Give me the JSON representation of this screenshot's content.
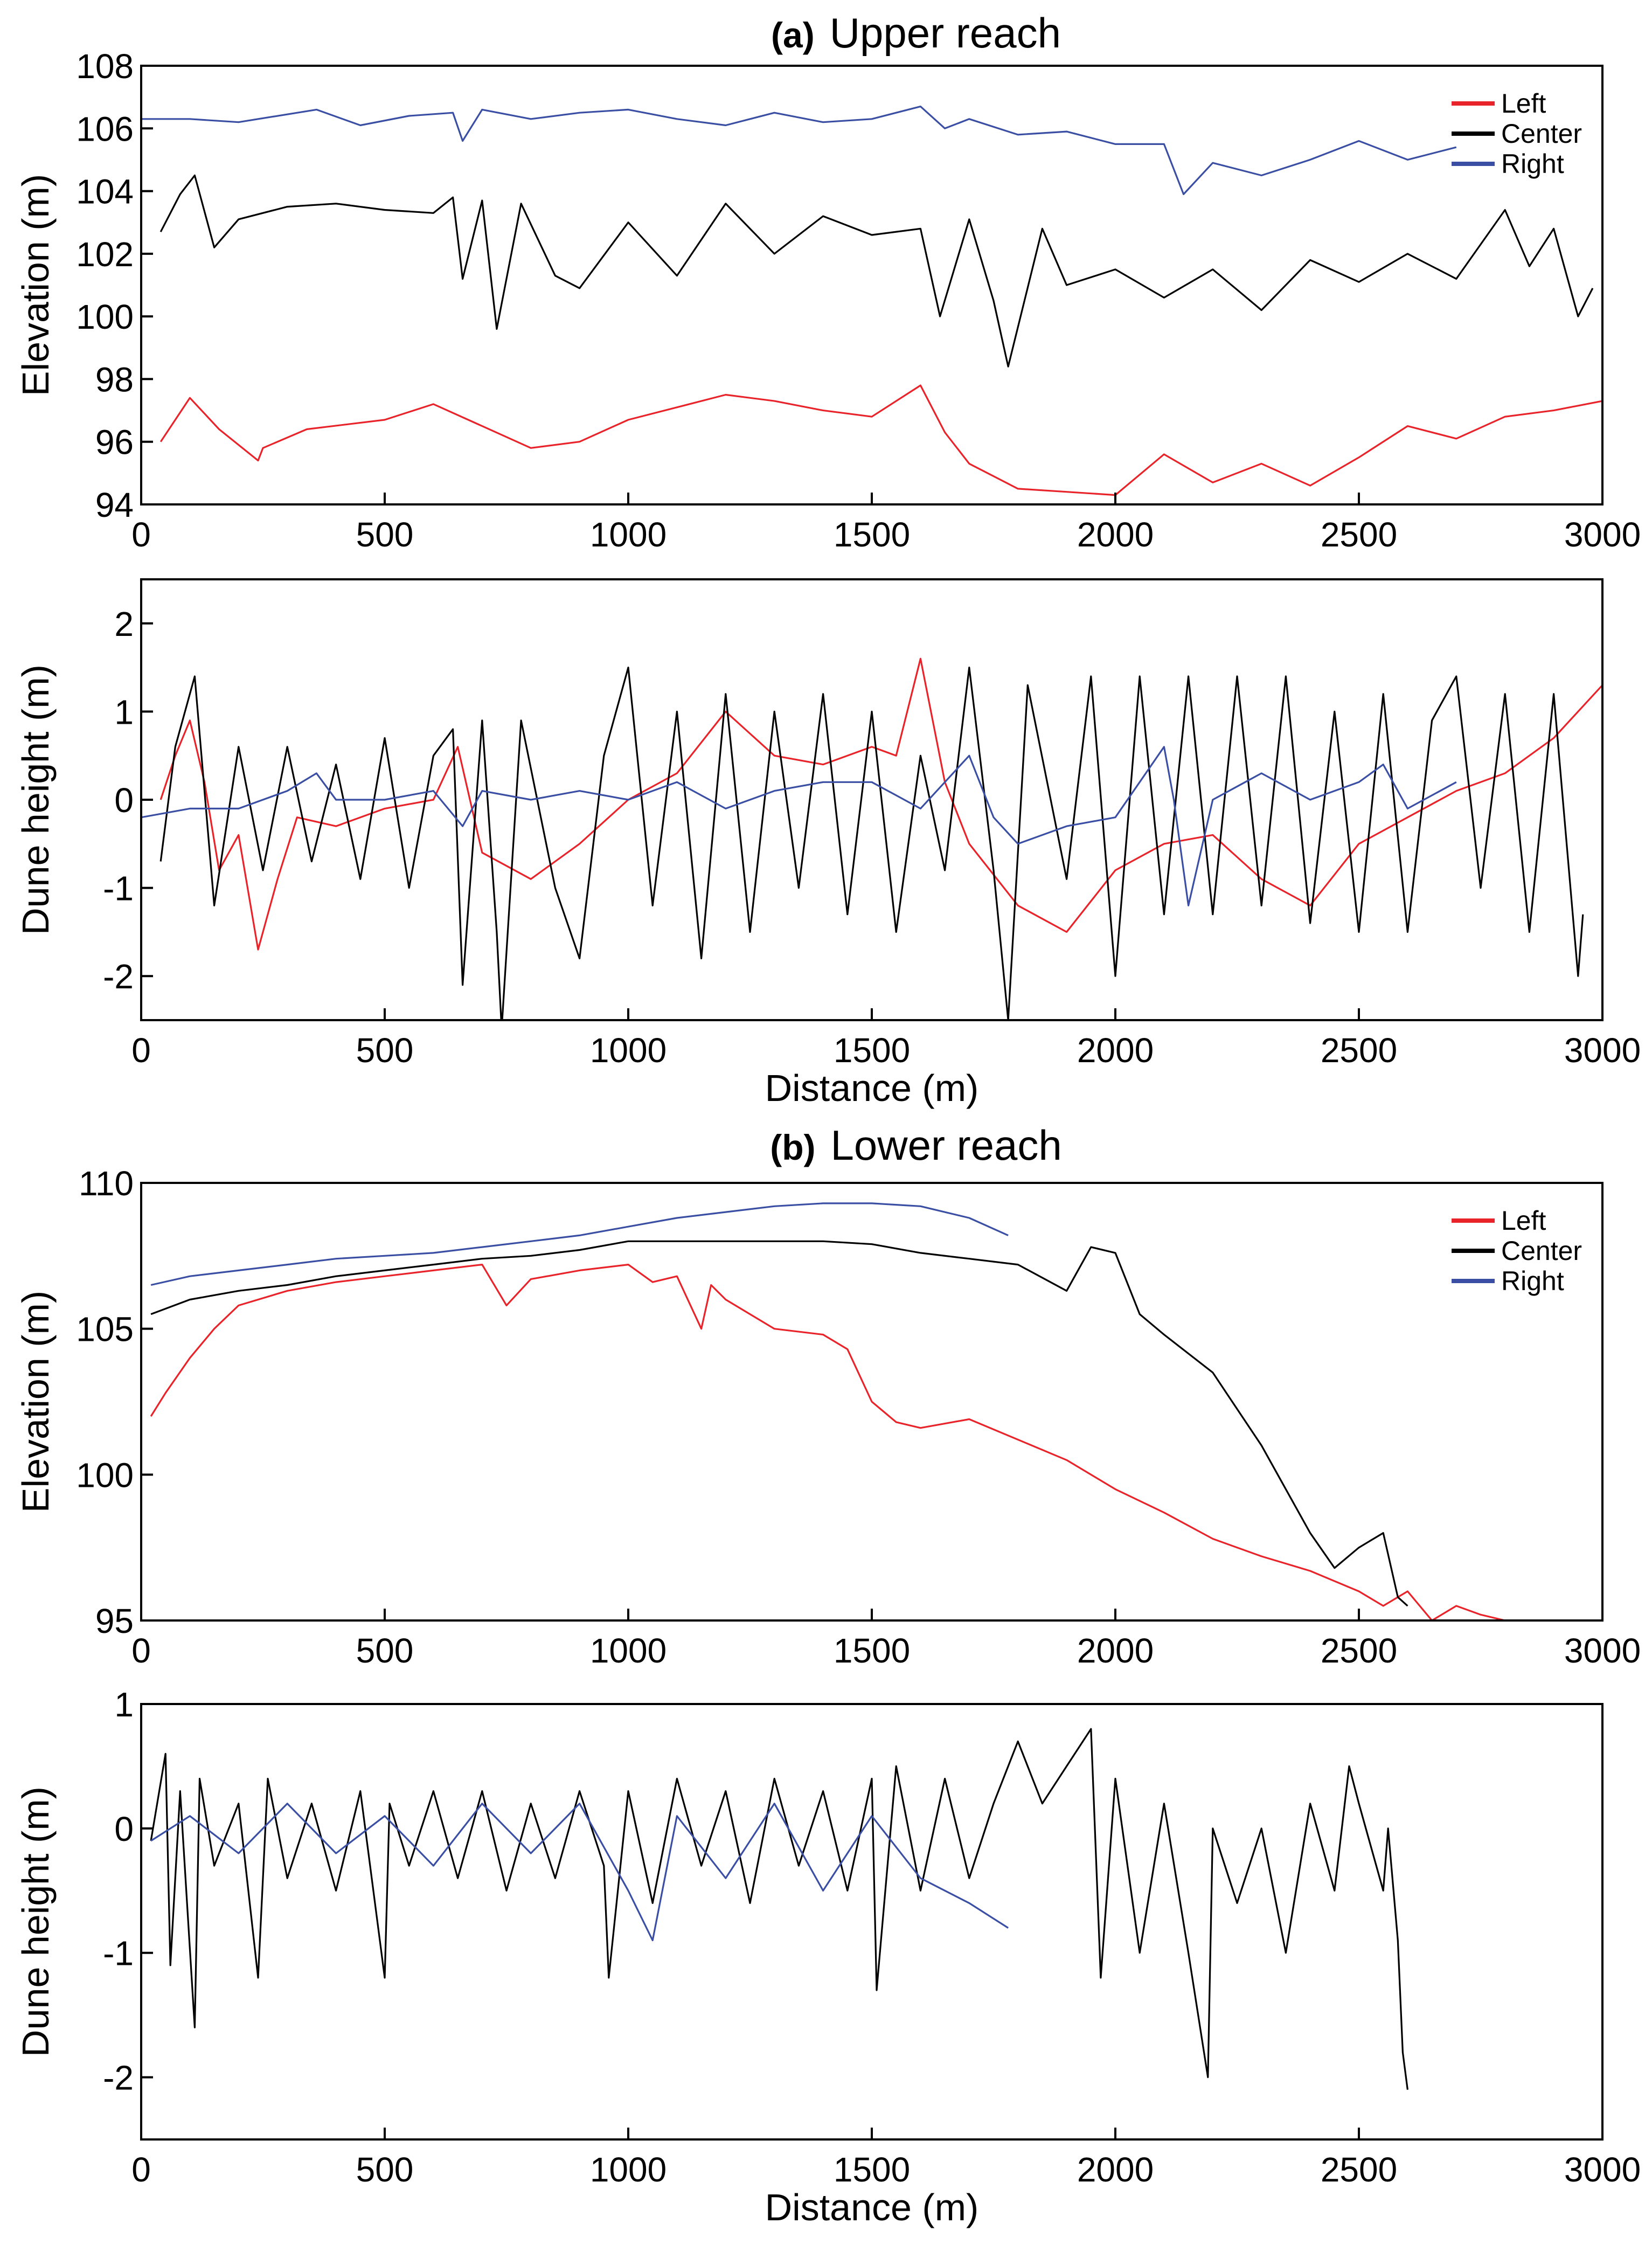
{
  "chart_data": [
    {
      "type": "line",
      "panel_prefix": "(a)",
      "title": "Upper reach",
      "xlabel": "",
      "ylabel": "Elevation (m)",
      "xlim": [
        0,
        3000
      ],
      "ylim": [
        94,
        108
      ],
      "xticks": [
        0,
        500,
        1000,
        1500,
        2000,
        2500,
        3000
      ],
      "yticks": [
        94,
        96,
        98,
        100,
        102,
        104,
        106,
        108
      ],
      "legend_position": "top-right",
      "series": [
        {
          "name": "Left",
          "color": "#e8232a",
          "x": [
            40,
            100,
            160,
            240,
            250,
            340,
            500,
            600,
            700,
            800,
            900,
            1000,
            1100,
            1200,
            1300,
            1400,
            1500,
            1600,
            1650,
            1700,
            1800,
            1900,
            2000,
            2100,
            2200,
            2300,
            2400,
            2500,
            2600,
            2700,
            2800,
            2900,
            3000
          ],
          "y": [
            96.0,
            97.4,
            96.4,
            95.4,
            95.8,
            96.4,
            96.7,
            97.2,
            96.5,
            95.8,
            96.0,
            96.7,
            97.1,
            97.5,
            97.3,
            97.0,
            96.8,
            97.8,
            96.3,
            95.3,
            94.5,
            94.4,
            94.3,
            95.6,
            94.7,
            95.3,
            94.6,
            95.5,
            96.5,
            96.1,
            96.8,
            97.0,
            97.3
          ]
        },
        {
          "name": "Center",
          "color": "#000000",
          "x": [
            40,
            80,
            110,
            150,
            200,
            300,
            400,
            500,
            600,
            640,
            660,
            700,
            730,
            780,
            850,
            900,
            1000,
            1100,
            1200,
            1300,
            1400,
            1500,
            1600,
            1640,
            1700,
            1750,
            1780,
            1850,
            1900,
            2000,
            2100,
            2200,
            2300,
            2400,
            2500,
            2600,
            2700,
            2800,
            2850,
            2900,
            2950,
            2980
          ],
          "y": [
            102.7,
            103.9,
            104.5,
            102.2,
            103.1,
            103.5,
            103.6,
            103.4,
            103.3,
            103.8,
            101.2,
            103.7,
            99.6,
            103.6,
            101.3,
            100.9,
            103.0,
            101.3,
            103.6,
            102.0,
            103.2,
            102.6,
            102.8,
            100.0,
            103.1,
            100.5,
            98.4,
            102.8,
            101.0,
            101.5,
            100.6,
            101.5,
            100.2,
            101.8,
            101.1,
            102.0,
            101.2,
            103.4,
            101.6,
            102.8,
            100.0,
            100.9
          ]
        },
        {
          "name": "Right",
          "color": "#3a4fa3",
          "x": [
            0,
            100,
            200,
            360,
            450,
            550,
            640,
            660,
            700,
            800,
            900,
            1000,
            1100,
            1200,
            1300,
            1400,
            1500,
            1600,
            1650,
            1700,
            1800,
            1900,
            2000,
            2100,
            2140,
            2200,
            2300,
            2400,
            2500,
            2600,
            2700
          ],
          "y": [
            106.3,
            106.3,
            106.2,
            106.6,
            106.1,
            106.4,
            106.5,
            105.6,
            106.6,
            106.3,
            106.5,
            106.6,
            106.3,
            106.1,
            106.5,
            106.2,
            106.3,
            106.7,
            106.0,
            106.3,
            105.8,
            105.9,
            105.5,
            105.5,
            103.9,
            104.9,
            104.5,
            105.0,
            105.6,
            105.0,
            105.4
          ]
        }
      ]
    },
    {
      "type": "line",
      "panel_prefix": "",
      "title": "",
      "xlabel": "Distance (m)",
      "ylabel": "Dune height (m)",
      "xlim": [
        0,
        3000
      ],
      "ylim": [
        -2.5,
        2.5
      ],
      "xticks": [
        0,
        500,
        1000,
        1500,
        2000,
        2500,
        3000
      ],
      "yticks": [
        -2,
        -1,
        0,
        1,
        2
      ],
      "legend_position": "none",
      "series": [
        {
          "name": "Left",
          "color": "#e8232a",
          "x": [
            40,
            70,
            100,
            130,
            160,
            200,
            240,
            280,
            320,
            400,
            500,
            600,
            650,
            700,
            800,
            900,
            1000,
            1100,
            1200,
            1300,
            1400,
            1500,
            1550,
            1600,
            1650,
            1700,
            1800,
            1900,
            2000,
            2100,
            2200,
            2300,
            2400,
            2500,
            2600,
            2700,
            2800,
            2900,
            3000
          ],
          "y": [
            0.0,
            0.5,
            0.9,
            0.2,
            -0.8,
            -0.4,
            -1.7,
            -0.9,
            -0.2,
            -0.3,
            -0.1,
            0.0,
            0.6,
            -0.6,
            -0.9,
            -0.5,
            0.0,
            0.3,
            1.0,
            0.5,
            0.4,
            0.6,
            0.5,
            1.6,
            0.2,
            -0.5,
            -1.2,
            -1.5,
            -0.8,
            -0.5,
            -0.4,
            -0.9,
            -1.2,
            -0.5,
            -0.2,
            0.1,
            0.3,
            0.7,
            1.3
          ]
        },
        {
          "name": "Center",
          "color": "#000000",
          "x": [
            40,
            70,
            110,
            150,
            200,
            250,
            300,
            350,
            400,
            450,
            500,
            550,
            600,
            640,
            660,
            700,
            730,
            740,
            780,
            850,
            900,
            950,
            1000,
            1050,
            1100,
            1150,
            1200,
            1250,
            1300,
            1350,
            1400,
            1450,
            1500,
            1550,
            1600,
            1650,
            1700,
            1750,
            1780,
            1820,
            1900,
            1950,
            2000,
            2050,
            2100,
            2150,
            2200,
            2250,
            2300,
            2350,
            2400,
            2450,
            2500,
            2550,
            2600,
            2650,
            2700,
            2750,
            2800,
            2850,
            2900,
            2950,
            2960
          ],
          "y": [
            -0.7,
            0.6,
            1.4,
            -1.2,
            0.6,
            -0.8,
            0.6,
            -0.7,
            0.4,
            -0.9,
            0.7,
            -1.0,
            0.5,
            0.8,
            -2.1,
            0.9,
            -1.5,
            -2.6,
            0.9,
            -1.0,
            -1.8,
            0.5,
            1.5,
            -1.2,
            1.0,
            -1.8,
            1.2,
            -1.5,
            1.0,
            -1.0,
            1.2,
            -1.3,
            1.0,
            -1.5,
            0.5,
            -0.8,
            1.5,
            -0.8,
            -2.5,
            1.3,
            -0.9,
            1.4,
            -2.0,
            1.4,
            -1.3,
            1.4,
            -1.3,
            1.4,
            -1.2,
            1.4,
            -1.4,
            1.0,
            -1.5,
            1.2,
            -1.5,
            0.9,
            1.4,
            -1.0,
            1.2,
            -1.5,
            1.2,
            -2.0,
            -1.3
          ]
        },
        {
          "name": "Right",
          "color": "#3a4fa3",
          "x": [
            0,
            100,
            200,
            300,
            360,
            400,
            500,
            600,
            660,
            700,
            800,
            900,
            1000,
            1100,
            1200,
            1300,
            1400,
            1500,
            1600,
            1650,
            1700,
            1750,
            1800,
            1900,
            2000,
            2100,
            2120,
            2150,
            2200,
            2300,
            2400,
            2500,
            2550,
            2600,
            2700
          ],
          "y": [
            -0.2,
            -0.1,
            -0.1,
            0.1,
            0.3,
            0.0,
            0.0,
            0.1,
            -0.3,
            0.1,
            0.0,
            0.1,
            0.0,
            0.2,
            -0.1,
            0.1,
            0.2,
            0.2,
            -0.1,
            0.2,
            0.5,
            -0.2,
            -0.5,
            -0.3,
            -0.2,
            0.6,
            0.0,
            -1.2,
            0.0,
            0.3,
            0.0,
            0.2,
            0.4,
            -0.1,
            0.2
          ]
        }
      ]
    },
    {
      "type": "line",
      "panel_prefix": "(b)",
      "title": "Lower reach",
      "xlabel": "",
      "ylabel": "Elevation (m)",
      "xlim": [
        0,
        3000
      ],
      "ylim": [
        95,
        110
      ],
      "xticks": [
        0,
        500,
        1000,
        1500,
        2000,
        2500,
        3000
      ],
      "yticks": [
        95,
        100,
        105,
        110
      ],
      "legend_position": "top-right",
      "series": [
        {
          "name": "Left",
          "color": "#e8232a",
          "x": [
            20,
            50,
            100,
            150,
            200,
            300,
            400,
            500,
            600,
            700,
            750,
            800,
            900,
            1000,
            1050,
            1100,
            1150,
            1170,
            1200,
            1300,
            1400,
            1450,
            1500,
            1550,
            1600,
            1700,
            1800,
            1900,
            2000,
            2100,
            2200,
            2300,
            2400,
            2500,
            2550,
            2600,
            2650,
            2700,
            2750,
            2800
          ],
          "y": [
            102.0,
            102.8,
            104.0,
            105.0,
            105.8,
            106.3,
            106.6,
            106.8,
            107.0,
            107.2,
            105.8,
            106.7,
            107.0,
            107.2,
            106.6,
            106.8,
            105.0,
            106.5,
            106.0,
            105.0,
            104.8,
            104.3,
            102.5,
            101.8,
            101.6,
            101.9,
            101.2,
            100.5,
            99.5,
            98.7,
            97.8,
            97.2,
            96.7,
            96.0,
            95.5,
            96.0,
            95.0,
            95.5,
            95.2,
            95.0
          ]
        },
        {
          "name": "Center",
          "color": "#000000",
          "x": [
            20,
            100,
            200,
            300,
            400,
            500,
            600,
            700,
            800,
            900,
            1000,
            1100,
            1200,
            1300,
            1400,
            1500,
            1600,
            1700,
            1800,
            1900,
            1950,
            2000,
            2050,
            2100,
            2200,
            2300,
            2400,
            2450,
            2500,
            2550,
            2580,
            2600
          ],
          "y": [
            105.5,
            106.0,
            106.3,
            106.5,
            106.8,
            107.0,
            107.2,
            107.4,
            107.5,
            107.7,
            108.0,
            108.0,
            108.0,
            108.0,
            108.0,
            107.9,
            107.6,
            107.4,
            107.2,
            106.3,
            107.8,
            107.6,
            105.5,
            104.8,
            103.5,
            101.0,
            98.0,
            96.8,
            97.5,
            98.0,
            95.8,
            95.5
          ]
        },
        {
          "name": "Right",
          "color": "#3a4fa3",
          "x": [
            20,
            100,
            200,
            300,
            400,
            500,
            600,
            700,
            800,
            900,
            1000,
            1100,
            1200,
            1300,
            1400,
            1500,
            1600,
            1700,
            1780
          ],
          "y": [
            106.5,
            106.8,
            107.0,
            107.2,
            107.4,
            107.5,
            107.6,
            107.8,
            108.0,
            108.2,
            108.5,
            108.8,
            109.0,
            109.2,
            109.3,
            109.3,
            109.2,
            108.8,
            108.2
          ]
        }
      ]
    },
    {
      "type": "line",
      "panel_prefix": "",
      "title": "",
      "xlabel": "Distance (m)",
      "ylabel": "Dune height (m)",
      "xlim": [
        0,
        3000
      ],
      "ylim": [
        -2.5,
        1
      ],
      "xticks": [
        0,
        500,
        1000,
        1500,
        2000,
        2500,
        3000
      ],
      "yticks": [
        -2,
        -1,
        0,
        1
      ],
      "legend_position": "none",
      "series": [
        {
          "name": "Center",
          "color": "#000000",
          "x": [
            20,
            50,
            60,
            80,
            110,
            120,
            150,
            200,
            240,
            260,
            300,
            350,
            400,
            450,
            500,
            510,
            550,
            600,
            650,
            700,
            750,
            800,
            850,
            900,
            950,
            960,
            1000,
            1050,
            1100,
            1150,
            1200,
            1250,
            1300,
            1350,
            1400,
            1450,
            1500,
            1510,
            1550,
            1600,
            1650,
            1700,
            1750,
            1800,
            1850,
            1900,
            1950,
            1970,
            2000,
            2050,
            2100,
            2150,
            2190,
            2200,
            2250,
            2300,
            2350,
            2400,
            2450,
            2480,
            2500,
            2550,
            2560,
            2580,
            2590,
            2600
          ],
          "y": [
            -0.1,
            0.6,
            -1.1,
            0.3,
            -1.6,
            0.4,
            -0.3,
            0.2,
            -1.2,
            0.4,
            -0.4,
            0.2,
            -0.5,
            0.3,
            -1.2,
            0.2,
            -0.3,
            0.3,
            -0.4,
            0.3,
            -0.5,
            0.2,
            -0.4,
            0.3,
            -0.3,
            -1.2,
            0.3,
            -0.6,
            0.4,
            -0.3,
            0.3,
            -0.6,
            0.4,
            -0.3,
            0.3,
            -0.5,
            0.4,
            -1.3,
            0.5,
            -0.5,
            0.4,
            -0.4,
            0.2,
            0.7,
            0.2,
            0.5,
            0.8,
            -1.2,
            0.4,
            -1.0,
            0.2,
            -1.0,
            -2.0,
            0.0,
            -0.6,
            0.0,
            -1.0,
            0.2,
            -0.5,
            0.5,
            0.2,
            -0.5,
            0.0,
            -0.9,
            -1.8,
            -2.1
          ]
        },
        {
          "name": "Right",
          "color": "#3a4fa3",
          "x": [
            20,
            100,
            200,
            300,
            400,
            500,
            600,
            700,
            800,
            900,
            1000,
            1050,
            1100,
            1200,
            1300,
            1400,
            1500,
            1600,
            1700,
            1780
          ],
          "y": [
            -0.1,
            0.1,
            -0.2,
            0.2,
            -0.2,
            0.1,
            -0.3,
            0.2,
            -0.2,
            0.2,
            -0.5,
            -0.9,
            0.1,
            -0.4,
            0.2,
            -0.5,
            0.1,
            -0.4,
            -0.6,
            -0.8
          ]
        }
      ]
    }
  ]
}
